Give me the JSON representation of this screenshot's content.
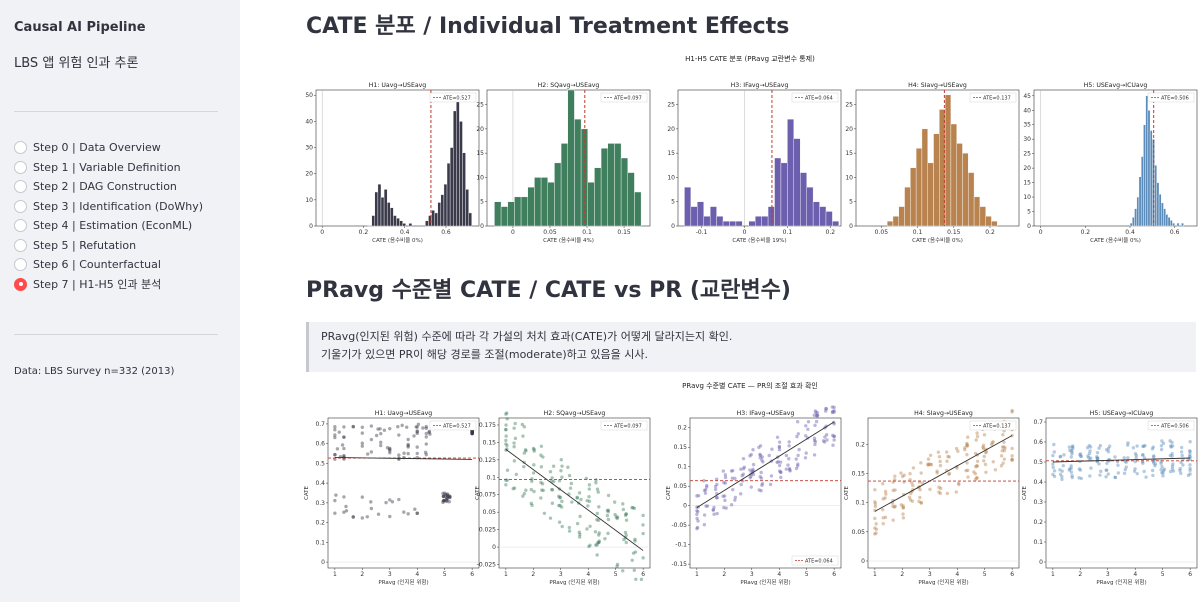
{
  "sidebar": {
    "title": "Causal AI Pipeline",
    "subtitle": "LBS 앱 위험 인과 추론",
    "steps": [
      {
        "label": "Step 0 | Data Overview",
        "selected": false
      },
      {
        "label": "Step 1 | Variable Definition",
        "selected": false
      },
      {
        "label": "Step 2 | DAG Construction",
        "selected": false
      },
      {
        "label": "Step 3 | Identification (DoWhy)",
        "selected": false
      },
      {
        "label": "Step 4 | Estimation (EconML)",
        "selected": false
      },
      {
        "label": "Step 5 | Refutation",
        "selected": false
      },
      {
        "label": "Step 6 | Counterfactual",
        "selected": false
      },
      {
        "label": "Step 7 | H1-H5 인과 분석",
        "selected": true
      }
    ],
    "footer": "Data: LBS Survey n=332 (2013)"
  },
  "main": {
    "heading1": "CATE 분포 / Individual Treatment Effects",
    "heading2": "PRavg 수준별 CATE / CATE vs PR (교란변수)",
    "note_line1": "PRavg(인지된 위험) 수준에 따라 각 가설의 처치 효과(CATE)가 어떻게 달라지는지 확인.",
    "note_line2": "기울기가 있으면 PR이 해당 경로를 조절(moderate)하고 있음을 시사."
  },
  "colors": {
    "accent": "#ff4b4b",
    "h1": "#3a3a4a",
    "h2": "#3f7f5e",
    "h3": "#6b5fae",
    "h4": "#b8834f",
    "h5": "#5b8cba"
  },
  "chart_data": [
    {
      "type": "bar",
      "title": "H1-H5 CATE 분포  (PRavg 교란변수 통제)",
      "panels": [
        {
          "title": "H1: Uavg→USEavg",
          "xlabel": "CATE  (음수비율 0%)",
          "ate_label": "ATE=0.527",
          "ate": 0.527,
          "xlim": [
            -0.03,
            0.76
          ],
          "ylim": [
            0,
            52
          ],
          "xticks": [
            0.0,
            0.2,
            0.4,
            0.6
          ],
          "yticks": [
            0,
            10,
            20,
            30,
            40,
            50
          ],
          "bins": [
            [
              0.22,
              0.01
            ],
            [
              0.24,
              4
            ],
            [
              0.255,
              13
            ],
            [
              0.27,
              16
            ],
            [
              0.285,
              11
            ],
            [
              0.3,
              14
            ],
            [
              0.315,
              9
            ],
            [
              0.33,
              7
            ],
            [
              0.345,
              4
            ],
            [
              0.36,
              3
            ],
            [
              0.375,
              2
            ],
            [
              0.39,
              1
            ],
            [
              0.42,
              1
            ],
            [
              0.5,
              2
            ],
            [
              0.515,
              4
            ],
            [
              0.53,
              6
            ],
            [
              0.545,
              5
            ],
            [
              0.56,
              9
            ],
            [
              0.575,
              12
            ],
            [
              0.59,
              16
            ],
            [
              0.605,
              24
            ],
            [
              0.62,
              30
            ],
            [
              0.635,
              44
            ],
            [
              0.65,
              50
            ],
            [
              0.665,
              40
            ],
            [
              0.68,
              28
            ],
            [
              0.695,
              14
            ],
            [
              0.71,
              5
            ]
          ],
          "bin_width": 0.015
        },
        {
          "title": "H2: SQavg→USEavg",
          "xlabel": "CATE  (음수비율 4%)",
          "ate_label": "ATE=0.097",
          "ate": 0.097,
          "xlim": [
            -0.035,
            0.185
          ],
          "ylim": [
            0,
            28
          ],
          "xticks": [
            0.0,
            0.05,
            0.1,
            0.15
          ],
          "yticks": [
            0,
            5,
            10,
            15,
            20,
            25
          ],
          "bins": [
            [
              -0.025,
              5
            ],
            [
              -0.016,
              4
            ],
            [
              -0.007,
              5
            ],
            [
              0.002,
              6
            ],
            [
              0.011,
              6
            ],
            [
              0.02,
              8
            ],
            [
              0.029,
              10
            ],
            [
              0.038,
              10
            ],
            [
              0.047,
              9
            ],
            [
              0.056,
              13
            ],
            [
              0.065,
              17
            ],
            [
              0.074,
              28
            ],
            [
              0.083,
              22
            ],
            [
              0.092,
              20
            ],
            [
              0.101,
              9
            ],
            [
              0.11,
              12
            ],
            [
              0.119,
              16
            ],
            [
              0.128,
              17
            ],
            [
              0.137,
              17
            ],
            [
              0.146,
              14
            ],
            [
              0.155,
              11
            ],
            [
              0.164,
              7
            ]
          ],
          "bin_width": 0.009
        },
        {
          "title": "H3: IFavg→USEavg",
          "xlabel": "CATE  (음수비율 19%)",
          "ate_label": "ATE=0.064",
          "ate": 0.064,
          "xlim": [
            -0.155,
            0.225
          ],
          "ylim": [
            0,
            28
          ],
          "xticks": [
            -0.1,
            0.0,
            0.1,
            0.2
          ],
          "yticks": [
            0,
            5,
            10,
            15,
            20,
            25
          ],
          "bins": [
            [
              -0.14,
              8
            ],
            [
              -0.125,
              4
            ],
            [
              -0.11,
              5
            ],
            [
              -0.095,
              2
            ],
            [
              -0.08,
              4
            ],
            [
              -0.065,
              2
            ],
            [
              -0.05,
              1
            ],
            [
              -0.035,
              1
            ],
            [
              -0.02,
              1
            ],
            [
              0.01,
              1
            ],
            [
              0.025,
              2
            ],
            [
              0.04,
              2
            ],
            [
              0.055,
              4
            ],
            [
              0.07,
              14
            ],
            [
              0.085,
              13
            ],
            [
              0.1,
              22
            ],
            [
              0.115,
              18
            ],
            [
              0.13,
              11
            ],
            [
              0.145,
              8
            ],
            [
              0.16,
              5
            ],
            [
              0.175,
              4
            ],
            [
              0.19,
              3
            ],
            [
              0.205,
              1
            ]
          ],
          "bin_width": 0.015
        },
        {
          "title": "H4: SIavg→USEavg",
          "xlabel": "CATE  (음수비율 0%)",
          "ate_label": "ATE=0.137",
          "ate": 0.137,
          "xlim": [
            0.015,
            0.24
          ],
          "ylim": [
            0,
            28
          ],
          "xticks": [
            0.05,
            0.1,
            0.15,
            0.2
          ],
          "yticks": [
            0,
            5,
            10,
            15,
            20,
            25
          ],
          "bins": [
            [
              0.058,
              1
            ],
            [
              0.066,
              2
            ],
            [
              0.074,
              4
            ],
            [
              0.082,
              8
            ],
            [
              0.09,
              12
            ],
            [
              0.098,
              16
            ],
            [
              0.106,
              20
            ],
            [
              0.114,
              13
            ],
            [
              0.122,
              19
            ],
            [
              0.13,
              24
            ],
            [
              0.138,
              27
            ],
            [
              0.146,
              21
            ],
            [
              0.154,
              17
            ],
            [
              0.162,
              15
            ],
            [
              0.17,
              11
            ],
            [
              0.178,
              6
            ],
            [
              0.186,
              4
            ],
            [
              0.194,
              2
            ],
            [
              0.202,
              1
            ]
          ],
          "bin_width": 0.008
        },
        {
          "title": "H5: USEavg→ICUavg",
          "xlabel": "CATE  (음수비율 0%)",
          "ate_label": "ATE=0.506",
          "ate": 0.506,
          "xlim": [
            -0.03,
            0.7
          ],
          "ylim": [
            0,
            47
          ],
          "xticks": [
            0.0,
            0.2,
            0.4,
            0.6
          ],
          "yticks": [
            0,
            5,
            10,
            15,
            20,
            25,
            30,
            35,
            40,
            45
          ],
          "bins": [
            [
              0.4,
              1
            ],
            [
              0.41,
              3
            ],
            [
              0.42,
              6
            ],
            [
              0.43,
              10
            ],
            [
              0.44,
              17
            ],
            [
              0.45,
              24
            ],
            [
              0.46,
              35
            ],
            [
              0.47,
              45
            ],
            [
              0.48,
              40
            ],
            [
              0.49,
              33
            ],
            [
              0.5,
              30
            ],
            [
              0.51,
              21
            ],
            [
              0.52,
              15
            ],
            [
              0.53,
              11
            ],
            [
              0.54,
              8
            ],
            [
              0.55,
              6
            ],
            [
              0.56,
              4
            ],
            [
              0.57,
              3
            ],
            [
              0.58,
              2
            ],
            [
              0.59,
              1
            ],
            [
              0.61,
              1
            ],
            [
              0.63,
              1
            ]
          ],
          "bin_width": 0.01
        }
      ]
    },
    {
      "type": "scatter",
      "title": "PRavg 수준별 CATE — PR의 조절 효과 확인",
      "panels": [
        {
          "title": "H1: Uavg→USEavg",
          "xlabel": "PRavg (인지된 위험)",
          "ylabel": "CATE",
          "ate_label": "ATE=0.527",
          "ate": 0.527,
          "legend": "top-right",
          "xlim": [
            0.75,
            6.25
          ],
          "ylim": [
            -0.03,
            0.73
          ],
          "xticks": [
            1,
            2,
            3,
            4,
            5,
            6
          ],
          "yticks": [
            0.0,
            0.1,
            0.2,
            0.3,
            0.4,
            0.5,
            0.6,
            0.7
          ],
          "trend": [
            [
              1,
              0.53
            ],
            [
              6,
              0.52
            ]
          ],
          "clusters": [
            [
              1,
              4.6,
              0.52,
              0.7
            ],
            [
              1,
              4.3,
              0.22,
              0.34
            ],
            [
              4.9,
              5.2,
              0.3,
              0.35
            ],
            [
              6,
              6,
              0.65,
              0.67
            ]
          ],
          "n": 330
        },
        {
          "title": "H2: SQavg→USEavg",
          "xlabel": "PRavg (인지된 위험)",
          "ylabel": "CATE",
          "ate_label": "ATE=0.097",
          "ate": 0.097,
          "legend": "top-right",
          "xlim": [
            0.75,
            6.25
          ],
          "ylim": [
            -0.03,
            0.185
          ],
          "xticks": [
            1,
            2,
            3,
            4,
            5,
            6
          ],
          "yticks": [
            -0.025,
            0.0,
            0.025,
            0.05,
            0.075,
            0.1,
            0.125,
            0.15,
            0.175
          ],
          "trend": [
            [
              1,
              0.14
            ],
            [
              6,
              -0.005
            ]
          ],
          "band": 0.055,
          "n": 330
        },
        {
          "title": "H3: IFavg→USEavg",
          "xlabel": "PRavg (인지된 위험)",
          "ylabel": "CATE",
          "ate_label": "ATE=0.064",
          "ate": 0.064,
          "legend": "bottom-right",
          "xlim": [
            0.75,
            6.25
          ],
          "ylim": [
            -0.16,
            0.225
          ],
          "xticks": [
            1,
            2,
            3,
            4,
            5,
            6
          ],
          "yticks": [
            -0.15,
            -0.1,
            -0.05,
            0.0,
            0.05,
            0.1,
            0.15,
            0.2
          ],
          "trend": [
            [
              1,
              -0.005
            ],
            [
              6,
              0.215
            ]
          ],
          "band": 0.06,
          "n": 330
        },
        {
          "title": "H4: SIavg→USEavg",
          "xlabel": "PRavg (인지된 위험)",
          "ylabel": "CATE",
          "ate_label": "ATE=0.137",
          "ate": 0.137,
          "legend": "top-right",
          "xlim": [
            0.75,
            6.25
          ],
          "ylim": [
            -0.012,
            0.245
          ],
          "xticks": [
            1,
            2,
            3,
            4,
            5,
            6
          ],
          "yticks": [
            0.0,
            0.05,
            0.1,
            0.15,
            0.2
          ],
          "trend": [
            [
              1,
              0.085
            ],
            [
              6,
              0.215
            ]
          ],
          "band": 0.045,
          "n": 330
        },
        {
          "title": "H5: USEavg→ICUavg",
          "xlabel": "PRavg (인지된 위험)",
          "ylabel": "CATE",
          "ate_label": "ATE=0.506",
          "ate": 0.506,
          "legend": "top-right",
          "xlim": [
            0.75,
            6.25
          ],
          "ylim": [
            -0.03,
            0.72
          ],
          "xticks": [
            1,
            2,
            3,
            4,
            5,
            6
          ],
          "yticks": [
            0.0,
            0.1,
            0.2,
            0.3,
            0.4,
            0.5,
            0.6,
            0.7
          ],
          "trend": [
            [
              1,
              0.5
            ],
            [
              6,
              0.52
            ]
          ],
          "band": 0.09,
          "n": 330
        }
      ]
    }
  ]
}
